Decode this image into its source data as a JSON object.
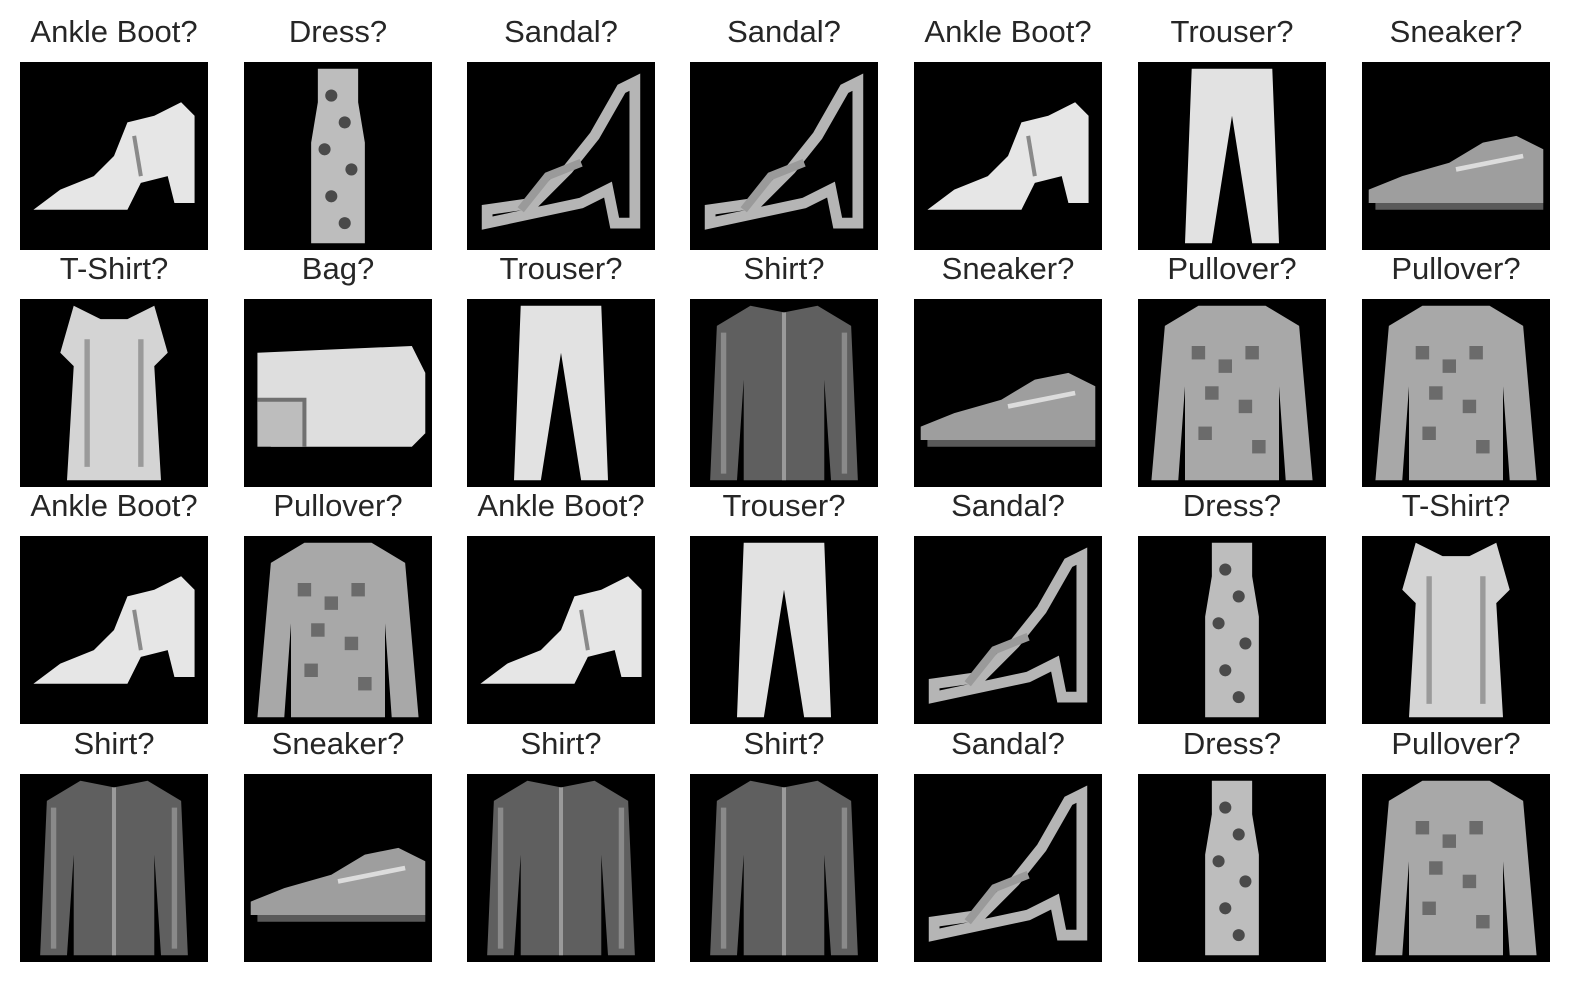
{
  "figure": {
    "background": "#ffffff",
    "tile_background": "#000000",
    "text_color": "#262626",
    "rows": 4,
    "cols": 7
  },
  "tiles": [
    {
      "label": "Ankle Boot?",
      "icon": "ankle-boot"
    },
    {
      "label": "Dress?",
      "icon": "dress"
    },
    {
      "label": "Sandal?",
      "icon": "sandal"
    },
    {
      "label": "Sandal?",
      "icon": "sandal"
    },
    {
      "label": "Ankle Boot?",
      "icon": "ankle-boot"
    },
    {
      "label": "Trouser?",
      "icon": "trouser"
    },
    {
      "label": "Sneaker?",
      "icon": "sneaker"
    },
    {
      "label": "T-Shirt?",
      "icon": "t-shirt"
    },
    {
      "label": "Bag?",
      "icon": "bag"
    },
    {
      "label": "Trouser?",
      "icon": "trouser"
    },
    {
      "label": "Shirt?",
      "icon": "shirt"
    },
    {
      "label": "Sneaker?",
      "icon": "sneaker"
    },
    {
      "label": "Pullover?",
      "icon": "pullover"
    },
    {
      "label": "Pullover?",
      "icon": "pullover"
    },
    {
      "label": "Ankle Boot?",
      "icon": "ankle-boot"
    },
    {
      "label": "Pullover?",
      "icon": "pullover"
    },
    {
      "label": "Ankle Boot?",
      "icon": "ankle-boot"
    },
    {
      "label": "Trouser?",
      "icon": "trouser"
    },
    {
      "label": "Sandal?",
      "icon": "sandal"
    },
    {
      "label": "Dress?",
      "icon": "dress"
    },
    {
      "label": "T-Shirt?",
      "icon": "t-shirt"
    },
    {
      "label": "Shirt?",
      "icon": "shirt"
    },
    {
      "label": "Sneaker?",
      "icon": "sneaker"
    },
    {
      "label": "Shirt?",
      "icon": "shirt"
    },
    {
      "label": "Shirt?",
      "icon": "shirt"
    },
    {
      "label": "Sandal?",
      "icon": "sandal"
    },
    {
      "label": "Dress?",
      "icon": "dress"
    },
    {
      "label": "Pullover?",
      "icon": "pullover"
    }
  ]
}
